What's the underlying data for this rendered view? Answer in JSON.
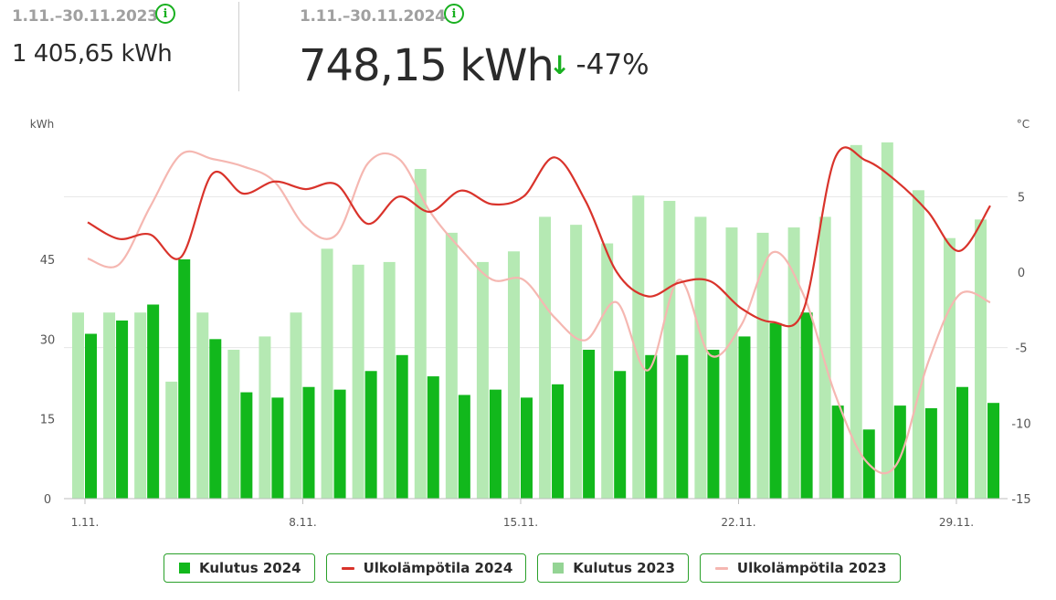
{
  "header": {
    "prev_period": "1.11.–30.11.2023",
    "prev_value": "1 405,65 kWh",
    "curr_period": "1.11.–30.11.2024",
    "curr_value": "748,15 kWh",
    "change": "-47%",
    "info_icon": "info-icon",
    "arrow_icon": "arrow-down-icon"
  },
  "colors": {
    "kulutus_2024": "#12b81c",
    "kulutus_2023": "#b5e9b3",
    "temp_2024": "#d9332b",
    "temp_2023": "#f5b7b1",
    "accent": "#19b020"
  },
  "legend": [
    {
      "label": "Kulutus 2024",
      "kind": "square",
      "color": "#12b81c"
    },
    {
      "label": "Ulkolämpötila 2024",
      "kind": "line",
      "color": "#d9332b"
    },
    {
      "label": "Kulutus 2023",
      "kind": "square",
      "color": "#94d494"
    },
    {
      "label": "Ulkolämpötila 2023",
      "kind": "line",
      "color": "#f5b7b1"
    }
  ],
  "chart_data": {
    "type": "bar",
    "left_axis_label": "kWh",
    "right_axis_label": "°C",
    "ylim": [
      0,
      70
    ],
    "left_ticks": [
      "0",
      "15",
      "30",
      "45"
    ],
    "left_tick_values": [
      0,
      15,
      30,
      45
    ],
    "y2lim": [
      -15,
      10
    ],
    "right_ticks": [
      "-15",
      "-10",
      "-5",
      "0",
      "5"
    ],
    "right_tick_values": [
      -15,
      -10,
      -5,
      0,
      5
    ],
    "x_tick_labels": [
      "1.11.",
      "8.11.",
      "15.11.",
      "22.11.",
      "29.11."
    ],
    "x_tick_days": [
      1,
      8,
      15,
      22,
      29
    ],
    "days": [
      1,
      2,
      3,
      4,
      5,
      6,
      7,
      8,
      9,
      10,
      11,
      12,
      13,
      14,
      15,
      16,
      17,
      18,
      19,
      20,
      21,
      22,
      23,
      24,
      25,
      26,
      27,
      28,
      29,
      30
    ],
    "series": [
      {
        "name": "Kulutus 2024",
        "type": "bar",
        "values": [
          31,
          33.5,
          36.5,
          45,
          30,
          20,
          19,
          21,
          20.5,
          24,
          27,
          23,
          19.5,
          20.5,
          19,
          21.5,
          28,
          24,
          27,
          27,
          28,
          30.5,
          33,
          35,
          17.5,
          13,
          17.5,
          17,
          21,
          18
        ]
      },
      {
        "name": "Kulutus 2023",
        "type": "bar",
        "values": [
          35,
          35,
          35,
          22,
          35,
          28,
          30.5,
          35,
          47,
          44,
          44.5,
          62,
          50,
          44.5,
          46.5,
          53,
          51.5,
          48,
          57,
          56,
          53,
          51,
          50,
          51,
          53,
          66.5,
          67,
          58,
          49,
          52.5
        ]
      },
      {
        "name": "Ulkolämpötila 2024",
        "type": "line",
        "axis": "right",
        "values": [
          3.3,
          2.2,
          2.5,
          1,
          6.5,
          5.2,
          6,
          5.5,
          5.8,
          3.2,
          5,
          4,
          5.4,
          4.5,
          5,
          7.6,
          4.7,
          0,
          -1.6,
          -0.7,
          -0.6,
          -2.4,
          -3.3,
          -2.5,
          7.5,
          7.4,
          6,
          4,
          1.4,
          4.4
        ]
      },
      {
        "name": "Ulkolämpötila 2023",
        "type": "line",
        "axis": "right",
        "values": [
          0.9,
          0.5,
          4.3,
          7.8,
          7.5,
          7,
          6,
          3,
          2.5,
          7.2,
          7.5,
          4,
          1.5,
          -0.5,
          -0.5,
          -3,
          -4.5,
          -2,
          -6.5,
          -0.5,
          -5.5,
          -3.5,
          1.3,
          -1.5,
          -8,
          -12.5,
          -12.7,
          -6,
          -1.5,
          -2
        ]
      }
    ]
  }
}
